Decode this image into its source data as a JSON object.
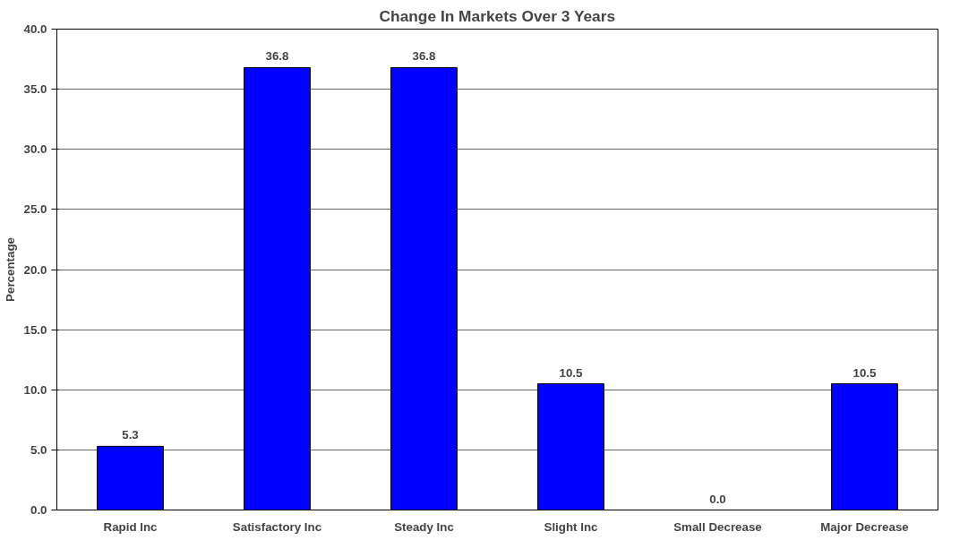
{
  "chart_data": {
    "type": "bar",
    "title": "Change In Markets Over 3 Years",
    "ylabel": "Percentage",
    "categories": [
      "Rapid Inc",
      "Satisfactory Inc",
      "Steady Inc",
      "Slight Inc",
      "Small Decrease",
      "Major Decrease"
    ],
    "values": [
      5.3,
      36.8,
      36.8,
      10.5,
      0.0,
      10.5
    ],
    "color": "#0000ff",
    "value_labels": [
      "5.3",
      "36.8",
      "36.8",
      "10.5",
      "0.0",
      "10.5"
    ],
    "ylim": [
      0,
      40
    ],
    "yticks": [
      {
        "value": 0,
        "label": "0.0"
      },
      {
        "value": 5,
        "label": "5.0"
      },
      {
        "value": 10,
        "label": "10.0"
      },
      {
        "value": 15,
        "label": "15.0"
      },
      {
        "value": 20,
        "label": "20.0"
      },
      {
        "value": 25,
        "label": "25.0"
      },
      {
        "value": 30,
        "label": "30.0"
      },
      {
        "value": 35,
        "label": "35.0"
      },
      {
        "value": 40,
        "label": "40.0"
      }
    ],
    "grid": "y"
  }
}
